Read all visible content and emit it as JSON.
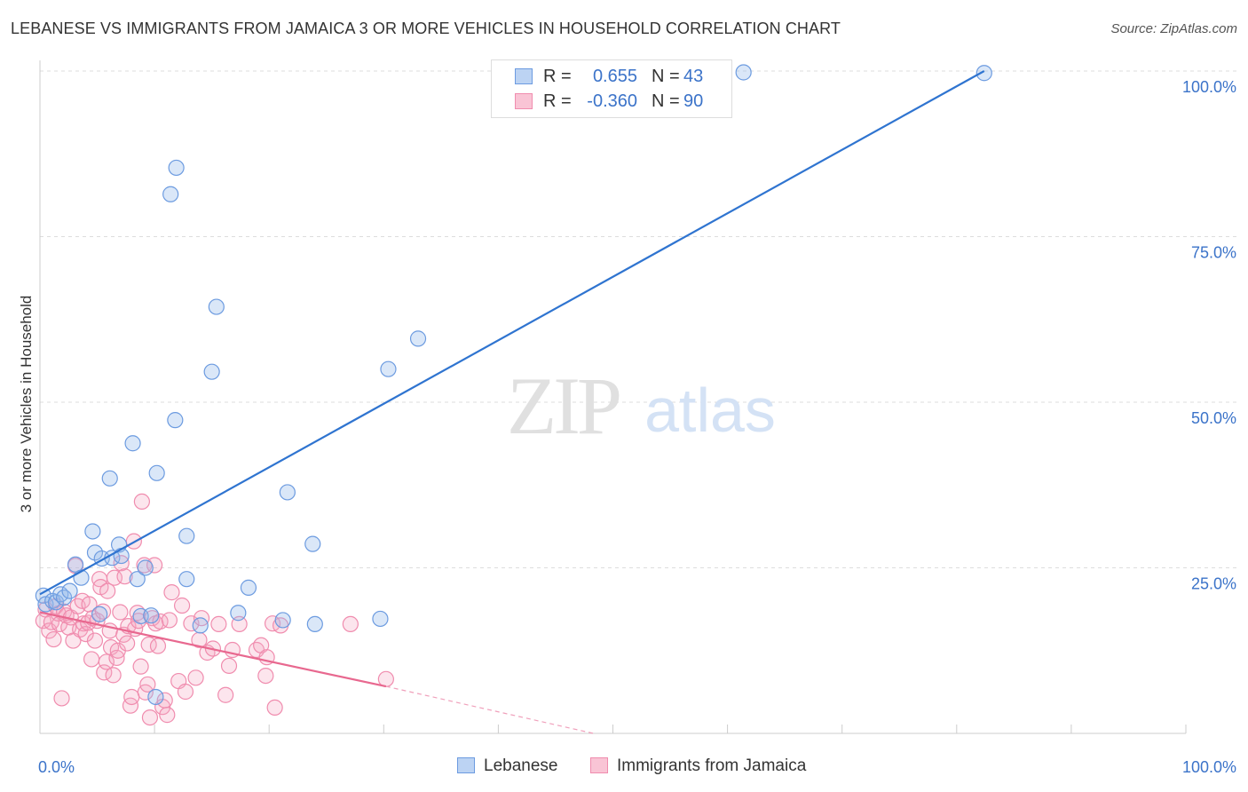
{
  "title": "LEBANESE VS IMMIGRANTS FROM JAMAICA 3 OR MORE VEHICLES IN HOUSEHOLD CORRELATION CHART",
  "source": "Source: ZipAtlas.com",
  "watermark": {
    "zip": "ZIP",
    "atlas": "atlas"
  },
  "legend": {
    "r_label": "R =",
    "n_label": "N =",
    "series": [
      {
        "r": "0.655",
        "n": "43"
      },
      {
        "r": "-0.360",
        "n": "90"
      }
    ]
  },
  "chart_data": {
    "type": "scatter",
    "title": "LEBANESE VS IMMIGRANTS FROM JAMAICA 3 OR MORE VEHICLES IN HOUSEHOLD CORRELATION CHART",
    "xlabel": "",
    "ylabel": "3 or more Vehicles in Household",
    "xlim": [
      0,
      100
    ],
    "ylim": [
      0,
      100
    ],
    "x_tick_labels": [
      "0.0%",
      "100.0%"
    ],
    "y_tick_labels": [
      "25.0%",
      "50.0%",
      "75.0%",
      "100.0%"
    ],
    "y_ticks": [
      25,
      50,
      75,
      100
    ],
    "grid": true,
    "legend_position": "top-center",
    "colors": {
      "lebanese": "#6c9be0",
      "jamaica": "#f08cae",
      "lebanese_line": "#2f74d0",
      "jamaica_line": "#e8688f",
      "axis_label": "#3b73c9"
    },
    "series": [
      {
        "name": "Lebanese",
        "trend": {
          "x": [
            0,
            82.4
          ],
          "y": [
            21.0,
            100.0
          ]
        },
        "points": [
          [
            0.3,
            20.8
          ],
          [
            0.5,
            19.5
          ],
          [
            1.1,
            20.0
          ],
          [
            1.4,
            19.8
          ],
          [
            1.8,
            21.0
          ],
          [
            2.1,
            20.5
          ],
          [
            2.6,
            21.5
          ],
          [
            3.1,
            25.5
          ],
          [
            3.6,
            23.5
          ],
          [
            4.6,
            30.5
          ],
          [
            4.8,
            27.3
          ],
          [
            5.4,
            26.4
          ],
          [
            5.2,
            18.0
          ],
          [
            6.1,
            38.5
          ],
          [
            6.3,
            26.5
          ],
          [
            6.9,
            28.5
          ],
          [
            7.1,
            26.8
          ],
          [
            8.1,
            43.8
          ],
          [
            8.5,
            23.3
          ],
          [
            8.8,
            17.7
          ],
          [
            9.2,
            25.0
          ],
          [
            9.7,
            17.8
          ],
          [
            10.2,
            39.3
          ],
          [
            10.1,
            5.5
          ],
          [
            11.4,
            81.4
          ],
          [
            11.9,
            85.4
          ],
          [
            11.8,
            47.3
          ],
          [
            12.8,
            29.8
          ],
          [
            12.8,
            23.3
          ],
          [
            14.0,
            16.3
          ],
          [
            15.0,
            54.6
          ],
          [
            15.4,
            64.4
          ],
          [
            17.3,
            18.2
          ],
          [
            18.2,
            22.0
          ],
          [
            21.2,
            17.1
          ],
          [
            21.6,
            36.4
          ],
          [
            23.8,
            28.6
          ],
          [
            24.0,
            16.5
          ],
          [
            29.7,
            17.3
          ],
          [
            30.4,
            55.0
          ],
          [
            33.0,
            59.6
          ],
          [
            61.4,
            99.8
          ],
          [
            82.4,
            99.7
          ]
        ]
      },
      {
        "name": "Immigrants from Jamaica",
        "trend": {
          "x": [
            0,
            30.2
          ],
          "y": [
            18.3,
            7.1
          ]
        },
        "trend_dashed": {
          "x": [
            30.2,
            48.3
          ],
          "y": [
            7.1,
            0.0
          ]
        },
        "points": [
          [
            0.3,
            17.0
          ],
          [
            0.5,
            18.7
          ],
          [
            0.8,
            15.5
          ],
          [
            1.0,
            16.8
          ],
          [
            1.2,
            14.2
          ],
          [
            1.4,
            19.2
          ],
          [
            1.6,
            18.1
          ],
          [
            1.7,
            16.5
          ],
          [
            1.9,
            5.3
          ],
          [
            2.1,
            18.4
          ],
          [
            2.3,
            17.8
          ],
          [
            2.5,
            16.0
          ],
          [
            2.7,
            17.5
          ],
          [
            2.9,
            14.0
          ],
          [
            3.1,
            25.3
          ],
          [
            3.3,
            19.2
          ],
          [
            3.5,
            15.7
          ],
          [
            3.7,
            20.0
          ],
          [
            3.8,
            16.6
          ],
          [
            4.0,
            15.0
          ],
          [
            4.2,
            16.7
          ],
          [
            4.3,
            19.5
          ],
          [
            4.5,
            11.2
          ],
          [
            4.6,
            17.4
          ],
          [
            4.8,
            14.0
          ],
          [
            5.0,
            17.0
          ],
          [
            5.2,
            23.3
          ],
          [
            5.3,
            22.1
          ],
          [
            5.5,
            18.4
          ],
          [
            5.6,
            9.2
          ],
          [
            5.8,
            10.8
          ],
          [
            5.9,
            21.5
          ],
          [
            6.1,
            15.5
          ],
          [
            6.2,
            13.0
          ],
          [
            6.4,
            8.8
          ],
          [
            6.5,
            23.5
          ],
          [
            6.7,
            11.4
          ],
          [
            6.8,
            12.5
          ],
          [
            7.0,
            18.3
          ],
          [
            7.1,
            25.7
          ],
          [
            7.3,
            14.9
          ],
          [
            7.4,
            23.7
          ],
          [
            7.6,
            13.6
          ],
          [
            7.7,
            16.2
          ],
          [
            7.9,
            4.2
          ],
          [
            8.0,
            5.5
          ],
          [
            8.2,
            29.0
          ],
          [
            8.3,
            15.8
          ],
          [
            8.5,
            18.2
          ],
          [
            8.6,
            17.0
          ],
          [
            8.8,
            10.1
          ],
          [
            8.9,
            35.0
          ],
          [
            9.1,
            25.4
          ],
          [
            9.2,
            6.2
          ],
          [
            9.4,
            7.4
          ],
          [
            9.5,
            13.4
          ],
          [
            9.6,
            2.4
          ],
          [
            9.8,
            17.4
          ],
          [
            10.0,
            25.4
          ],
          [
            10.1,
            16.6
          ],
          [
            10.3,
            13.2
          ],
          [
            10.5,
            16.9
          ],
          [
            10.7,
            4.0
          ],
          [
            10.9,
            5.0
          ],
          [
            11.1,
            2.8
          ],
          [
            11.3,
            17.1
          ],
          [
            11.5,
            21.3
          ],
          [
            12.1,
            7.9
          ],
          [
            12.4,
            19.3
          ],
          [
            12.7,
            6.3
          ],
          [
            13.2,
            16.6
          ],
          [
            13.6,
            8.4
          ],
          [
            13.9,
            14.1
          ],
          [
            14.1,
            17.4
          ],
          [
            14.6,
            12.2
          ],
          [
            15.1,
            12.8
          ],
          [
            15.6,
            16.5
          ],
          [
            16.2,
            5.8
          ],
          [
            16.5,
            10.2
          ],
          [
            16.8,
            12.6
          ],
          [
            17.4,
            16.5
          ],
          [
            18.9,
            12.6
          ],
          [
            19.3,
            13.3
          ],
          [
            19.7,
            8.7
          ],
          [
            19.8,
            11.5
          ],
          [
            20.3,
            16.6
          ],
          [
            20.5,
            3.9
          ],
          [
            21.0,
            16.3
          ],
          [
            27.1,
            16.5
          ],
          [
            30.2,
            8.2
          ]
        ]
      }
    ]
  },
  "bottom_legend": [
    "Lebanese",
    "Immigrants from Jamaica"
  ]
}
